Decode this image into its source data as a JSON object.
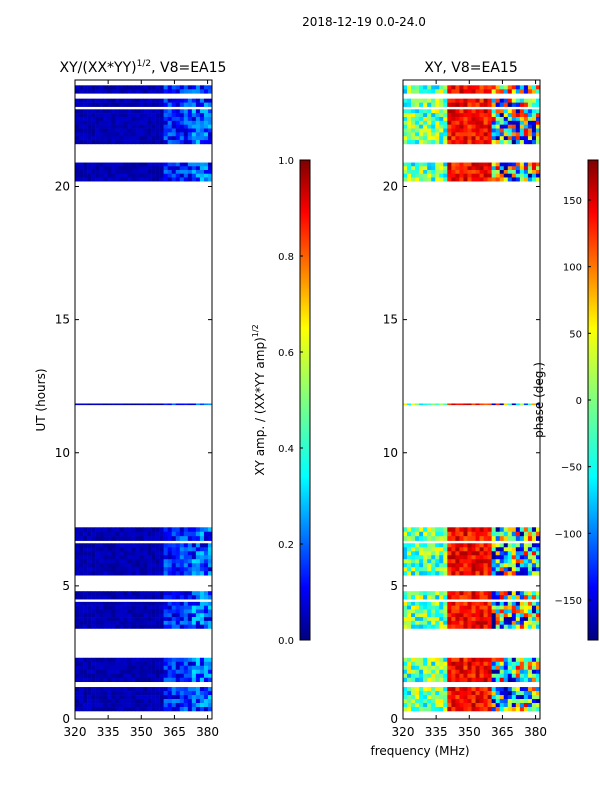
{
  "suptitle": "2018-12-19 0.0-24.0",
  "xlabel_shared": "frequency (MHz)",
  "chart_data": [
    {
      "type": "heatmap",
      "title_text": "XY/(XX*YY)",
      "title_sup": "1/2",
      "title_suffix": ", V8=EA15",
      "ylabel": "UT (hours)",
      "xlim": [
        320,
        382
      ],
      "ylim": [
        0,
        24
      ],
      "xticks": [
        320,
        335,
        350,
        365,
        380
      ],
      "yticks": [
        0,
        5,
        10,
        15,
        20
      ],
      "data_bands_hours": [
        [
          0.3,
          1.2
        ],
        [
          1.4,
          2.3
        ],
        [
          3.4,
          4.4
        ],
        [
          4.5,
          4.8
        ],
        [
          5.4,
          6.6
        ],
        [
          6.7,
          7.2
        ],
        [
          11.8,
          11.85
        ],
        [
          20.2,
          20.9
        ],
        [
          21.6,
          22.9
        ],
        [
          23.0,
          23.3
        ],
        [
          23.5,
          23.8
        ]
      ],
      "colorbar": {
        "label_text": "XY amp. / (XX*YY amp)",
        "label_sup": "1/2",
        "range": [
          0.0,
          1.0
        ],
        "ticks": [
          "0.0",
          "0.2",
          "0.4",
          "0.6",
          "0.8",
          "1.0"
        ],
        "tick_values": [
          0.0,
          0.2,
          0.4,
          0.6,
          0.8,
          1.0
        ]
      }
    },
    {
      "type": "heatmap",
      "title_text": "XY, V8=EA15",
      "xlim": [
        320,
        382
      ],
      "ylim": [
        0,
        24
      ],
      "xticks": [
        320,
        335,
        350,
        365,
        380
      ],
      "yticks": [
        0,
        5,
        10,
        15,
        20
      ],
      "data_bands_hours": [
        [
          0.3,
          1.2
        ],
        [
          1.4,
          2.3
        ],
        [
          3.4,
          4.4
        ],
        [
          4.5,
          4.8
        ],
        [
          5.4,
          6.6
        ],
        [
          6.7,
          7.2
        ],
        [
          11.8,
          11.85
        ],
        [
          20.2,
          20.9
        ],
        [
          21.6,
          22.9
        ],
        [
          23.0,
          23.3
        ],
        [
          23.5,
          23.8
        ]
      ],
      "colorbar": {
        "label": "phase (deg.)",
        "range": [
          -180,
          180
        ],
        "ticks": [
          "150",
          "100",
          "50",
          "0",
          "−50",
          "−100",
          "−150"
        ],
        "tick_values": [
          150,
          100,
          50,
          0,
          -50,
          -100,
          -150
        ]
      }
    }
  ],
  "colors": {
    "jet_stops": [
      "#00007f",
      "#0000ff",
      "#007fff",
      "#00ffff",
      "#7fff7f",
      "#ffff00",
      "#ff7f00",
      "#ff0000",
      "#7f0000"
    ]
  }
}
